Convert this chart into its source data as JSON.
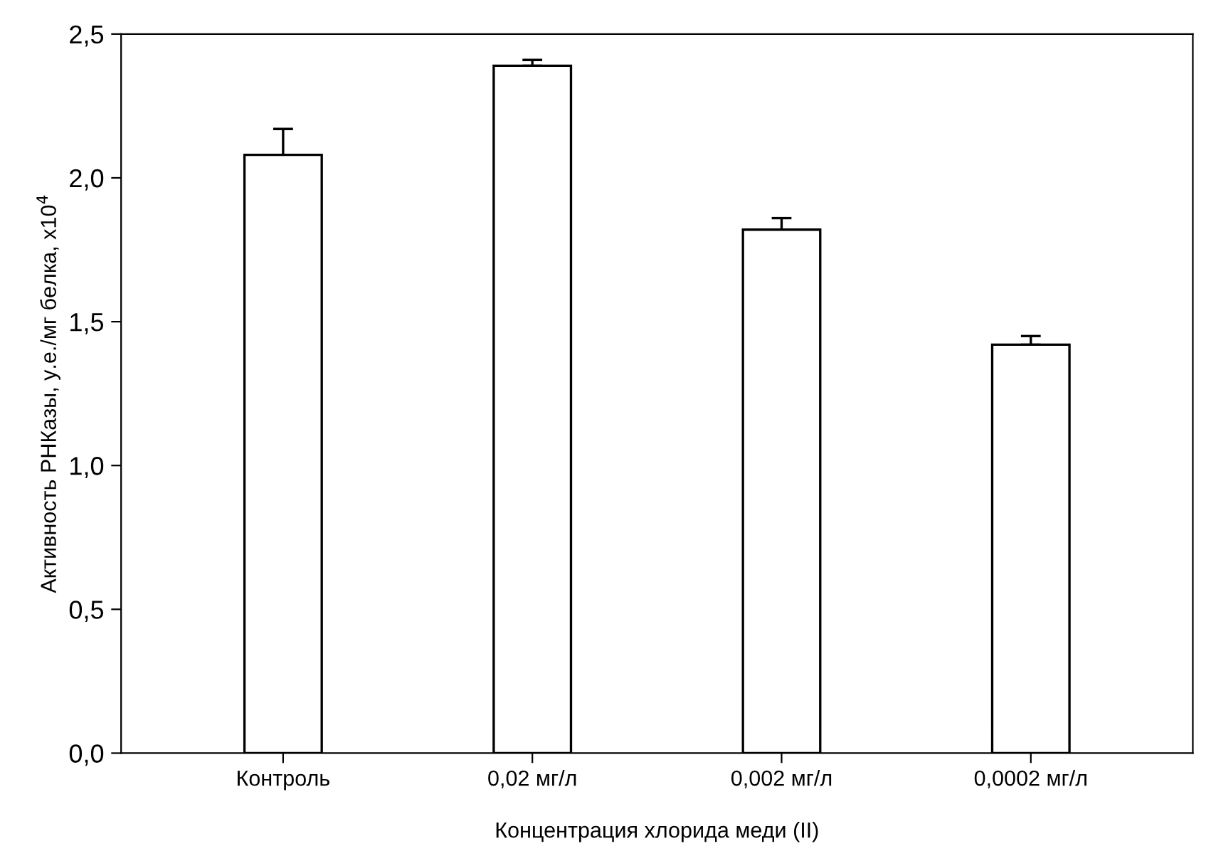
{
  "chart_data": {
    "type": "bar",
    "xlabel": "Концентрация хлорида меди (II)",
    "ylabel": "Активность РНКазы, у.е./мг белка, x10$^{4}$",
    "categories": [
      "Контроль",
      "0,02 мг/л",
      "0,002 мг/л",
      "0,0002 мг/л"
    ],
    "values": [
      2.08,
      2.39,
      1.82,
      1.42
    ],
    "errors": [
      [
        2.08,
        2.17
      ],
      [
        2.39,
        2.41
      ],
      [
        1.82,
        1.86
      ],
      [
        1.42,
        1.45
      ]
    ],
    "color": "#ffffff",
    "ylim": [
      0,
      2.5
    ],
    "yticks": [
      {
        "value": 0,
        "label": "0,0"
      },
      {
        "value": 0.5,
        "label": "0,5"
      },
      {
        "value": 1.0,
        "label": "1,0"
      },
      {
        "value": 1.5,
        "label": "1,5"
      },
      {
        "value": 2.0,
        "label": "2,0"
      },
      {
        "value": 2.5,
        "label": "2,5"
      }
    ],
    "grid": false
  }
}
